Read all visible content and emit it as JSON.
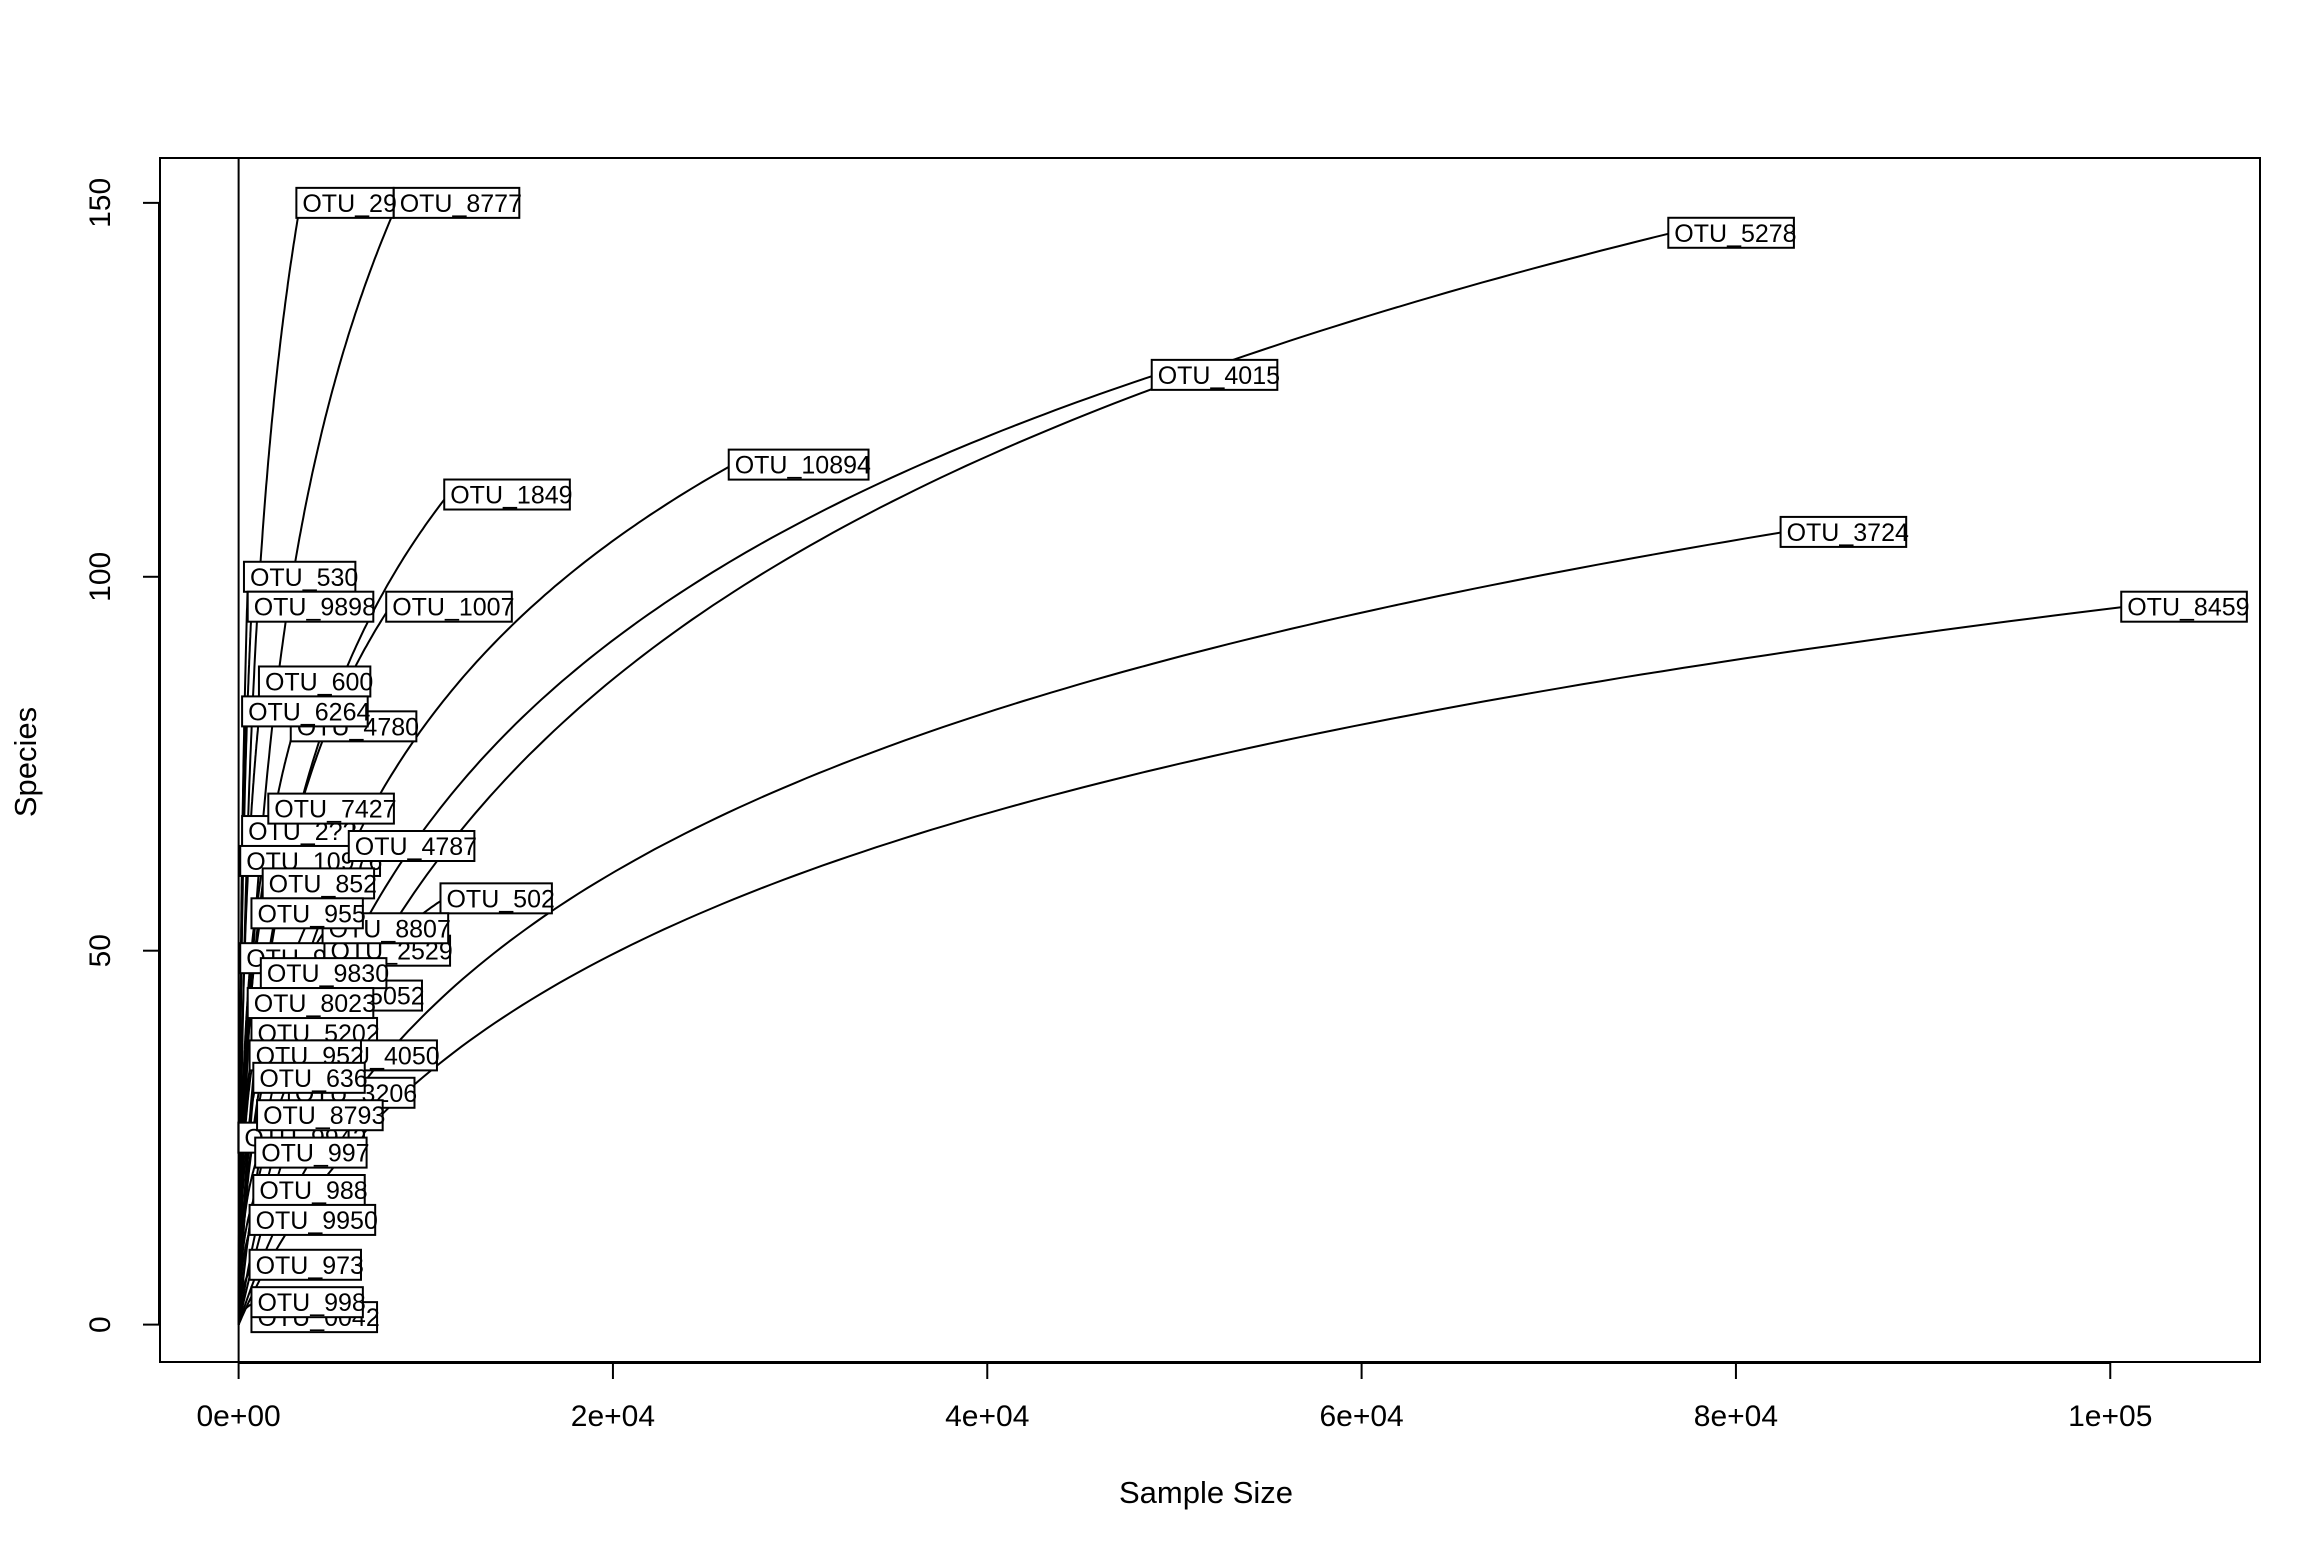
{
  "chart_data": {
    "type": "line",
    "title": "",
    "xlabel": "Sample Size",
    "ylabel": "Species",
    "xlim": [
      -4200,
      108000
    ],
    "ylim": [
      -5,
      156
    ],
    "x_ticks": [
      {
        "value": 0,
        "label": "0e+00"
      },
      {
        "value": 20000,
        "label": "2e+04"
      },
      {
        "value": 40000,
        "label": "4e+04"
      },
      {
        "value": 60000,
        "label": "6e+04"
      },
      {
        "value": 80000,
        "label": "8e+04"
      },
      {
        "value": 100000,
        "label": "1e+05"
      }
    ],
    "y_ticks": [
      {
        "value": 0,
        "label": "0"
      },
      {
        "value": 50,
        "label": "50"
      },
      {
        "value": 100,
        "label": "100"
      },
      {
        "value": 150,
        "label": "150"
      }
    ],
    "vertical_reference_line_x": 0,
    "grid": false,
    "legend": "none",
    "series": [
      {
        "name": "OTU_8459",
        "n_max": 100800,
        "s_max": 96
      },
      {
        "name": "OTU_5278",
        "n_max": 76600,
        "s_max": 146
      },
      {
        "name": "OTU_3724",
        "n_max": 82600,
        "s_max": 106
      },
      {
        "name": "OTU_4015",
        "n_max": 49000,
        "s_max": 127
      },
      {
        "name": "OTU_10894",
        "n_max": 26400,
        "s_max": 115
      },
      {
        "name": "OTU_8777",
        "n_max": 8500,
        "s_max": 150
      },
      {
        "name": "OTU_29",
        "n_max": 3300,
        "s_max": 150
      },
      {
        "name": "OTU_1849",
        "n_max": 11200,
        "s_max": 111
      },
      {
        "name": "OTU_1007",
        "n_max": 8100,
        "s_max": 96
      },
      {
        "name": "OTU_4780",
        "n_max": 3000,
        "s_max": 80
      },
      {
        "name": "OTU_600",
        "n_max": 1300,
        "s_max": 86
      },
      {
        "name": "OTU_4787",
        "n_max": 6100,
        "s_max": 64
      },
      {
        "name": "OTU_502",
        "n_max": 11000,
        "s_max": 57
      },
      {
        "name": "OTU_8807",
        "n_max": 4700,
        "s_max": 53
      },
      {
        "name": "OTU_530",
        "n_max": 500,
        "s_max": 100
      },
      {
        "name": "OTU_9898",
        "n_max": 700,
        "s_max": 96
      },
      {
        "name": "OTU_6264",
        "n_max": 400,
        "s_max": 82
      },
      {
        "name": "OTU_7427",
        "n_max": 1800,
        "s_max": 69
      },
      {
        "name": "OTU_852",
        "n_max": 1500,
        "s_max": 59
      },
      {
        "name": "OTU_955",
        "n_max": 900,
        "s_max": 55
      },
      {
        "name": "OTU_9830",
        "n_max": 1400,
        "s_max": 47
      },
      {
        "name": "OTU_8023",
        "n_max": 700,
        "s_max": 43
      },
      {
        "name": "OTU_952",
        "n_max": 800,
        "s_max": 36
      },
      {
        "name": "OTU_636",
        "n_max": 1000,
        "s_max": 33
      },
      {
        "name": "OTU_8793",
        "n_max": 1200,
        "s_max": 28
      },
      {
        "name": "OTU_997",
        "n_max": 1100,
        "s_max": 23
      },
      {
        "name": "OTU_988",
        "n_max": 1000,
        "s_max": 18
      },
      {
        "name": "OTU_9950",
        "n_max": 800,
        "s_max": 14
      },
      {
        "name": "OTU_973",
        "n_max": 800,
        "s_max": 8
      },
      {
        "name": "OTU_998",
        "n_max": 900,
        "s_max": 3
      }
    ],
    "partially_hidden_labels": [
      {
        "text": "OTU_2??",
        "x": 400,
        "y": 66
      },
      {
        "text": "OTU_10976",
        "x": 300,
        "y": 62
      },
      {
        "text": "OTU_9243",
        "x": 300,
        "y": 49
      },
      {
        "text": "OTU_9942",
        "x": 200,
        "y": 25
      },
      {
        "text": "OTU_5202",
        "x": 900,
        "y": 39
      },
      {
        "text": "OTU_0042",
        "x": 900,
        "y": 1
      },
      {
        "text": "OTU_2529",
        "x": 4800,
        "y": 50
      },
      {
        "text": "OTU_4050",
        "x": 4100,
        "y": 36
      },
      {
        "text": "OTU_5052",
        "x": 3300,
        "y": 44
      },
      {
        "text": "OTU_3206",
        "x": 2900,
        "y": 31
      }
    ]
  }
}
